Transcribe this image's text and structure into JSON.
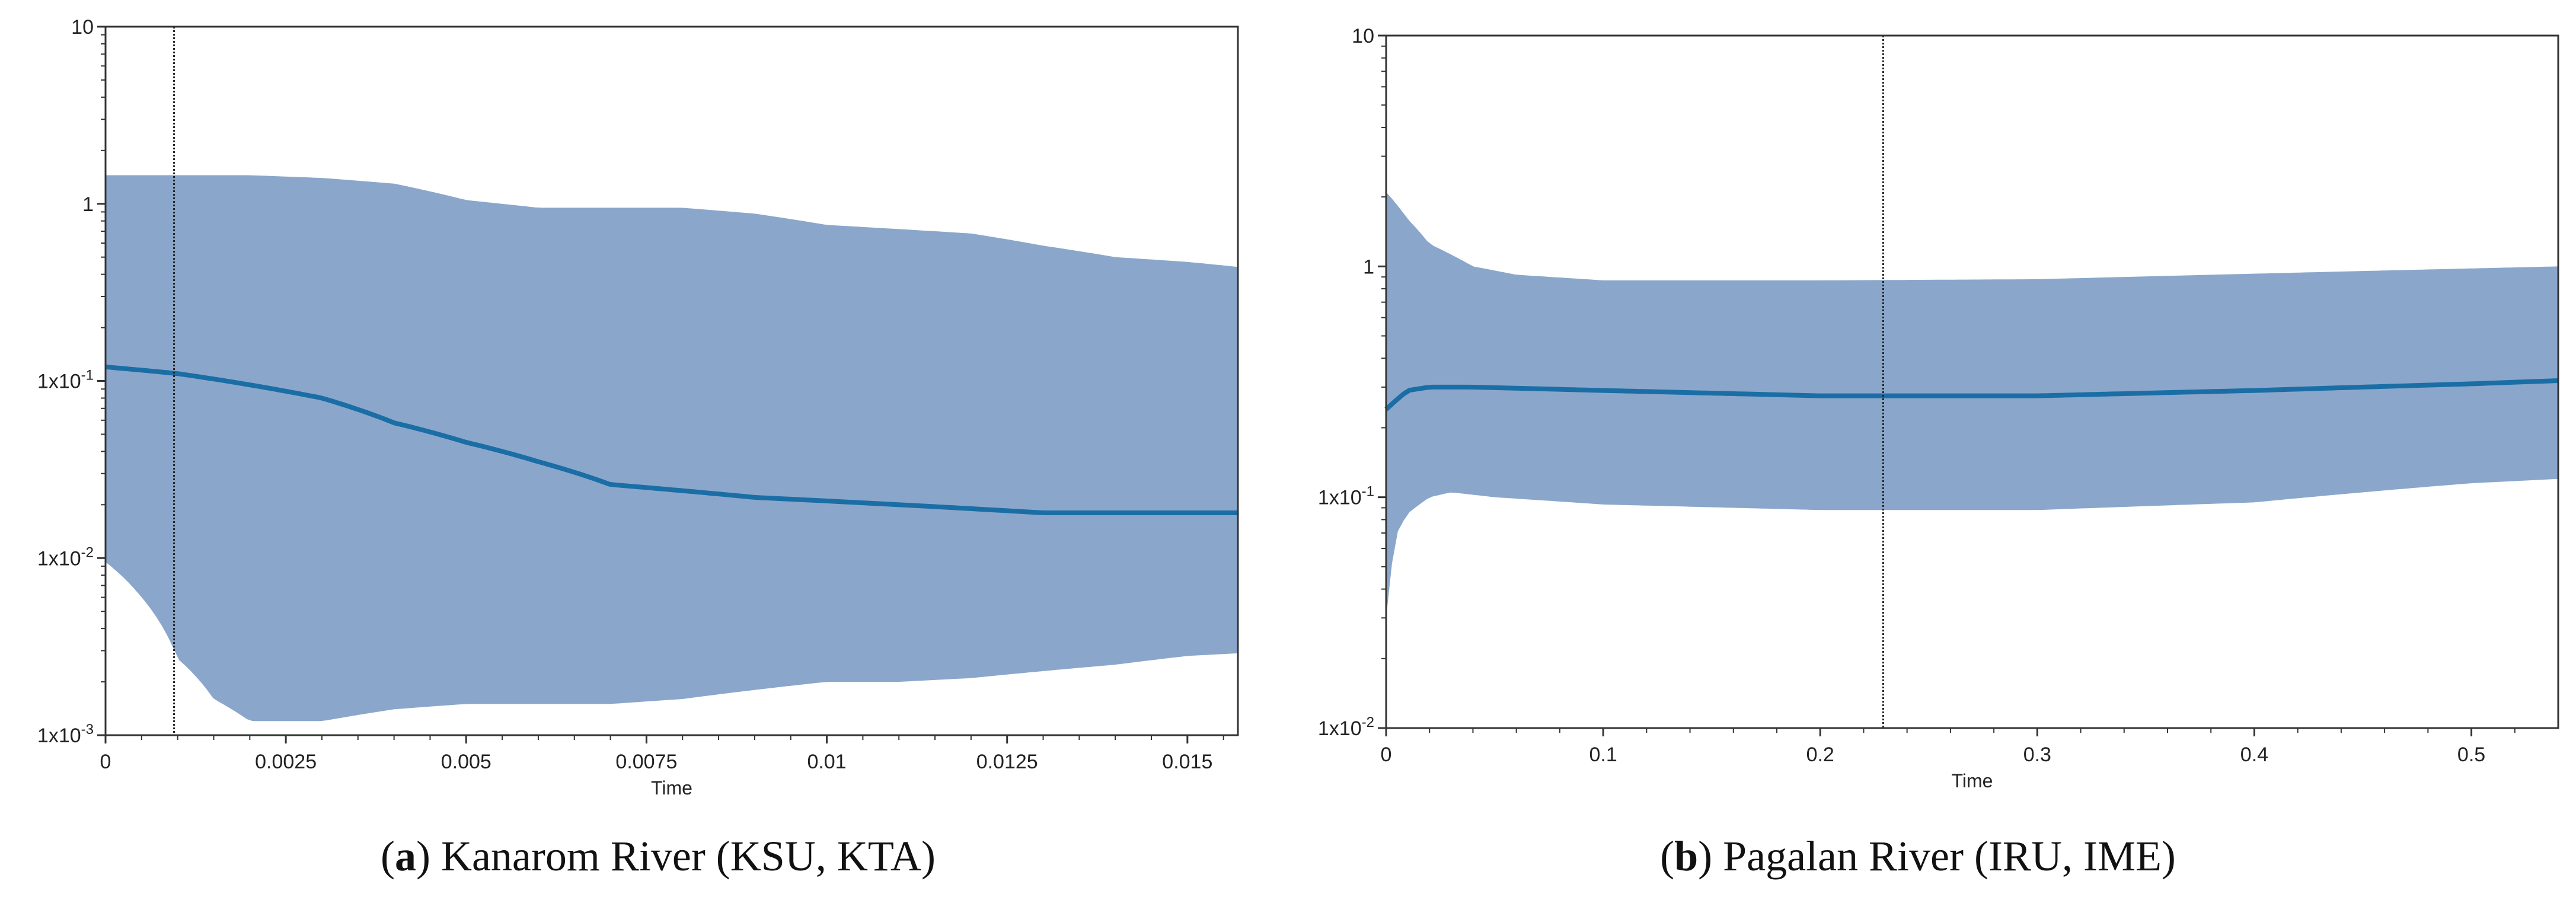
{
  "chart_data": [
    {
      "type": "area",
      "subplot_letter": "a",
      "caption": "Kanarom River (KSU, KTA)",
      "xlabel": "Time",
      "ylabel": "",
      "yscale": "log",
      "xlim": [
        0,
        0.0157
      ],
      "ylim": [
        0.001,
        10
      ],
      "x_ticks": [
        0,
        0.0025,
        0.005,
        0.0075,
        0.01,
        0.0125,
        0.015
      ],
      "x_tick_labels": [
        "0",
        "0.0025",
        "0.005",
        "0.0075",
        "0.01",
        "0.0125",
        "0.015"
      ],
      "y_ticks": [
        0.001,
        0.01,
        0.1,
        1,
        10
      ],
      "y_tick_labels": [
        {
          "base": "1x10",
          "exp": "-3"
        },
        {
          "base": "1x10",
          "exp": "-2"
        },
        {
          "base": "1x10",
          "exp": "-1"
        },
        {
          "base": "1",
          "exp": ""
        },
        {
          "base": "10",
          "exp": ""
        }
      ],
      "vline_x": 0.00095,
      "series": [
        {
          "name": "median",
          "x": [
            0,
            0.001,
            0.002,
            0.003,
            0.004,
            0.005,
            0.006,
            0.007,
            0.008,
            0.009,
            0.01,
            0.011,
            0.012,
            0.013,
            0.014,
            0.015,
            0.0157
          ],
          "values": [
            0.12,
            0.11,
            0.095,
            0.08,
            0.058,
            0.045,
            0.035,
            0.026,
            0.024,
            0.022,
            0.021,
            0.02,
            0.019,
            0.018,
            0.018,
            0.018,
            0.018
          ]
        },
        {
          "name": "upper_95_hpd",
          "x": [
            0,
            0.001,
            0.002,
            0.003,
            0.004,
            0.005,
            0.006,
            0.007,
            0.008,
            0.009,
            0.01,
            0.011,
            0.012,
            0.013,
            0.014,
            0.015,
            0.0157
          ],
          "values": [
            1.45,
            1.45,
            1.45,
            1.4,
            1.3,
            1.05,
            0.95,
            0.95,
            0.95,
            0.88,
            0.76,
            0.72,
            0.68,
            0.58,
            0.5,
            0.47,
            0.44
          ]
        },
        {
          "name": "lower_95_hpd",
          "x": [
            0,
            0.0005,
            0.001,
            0.0015,
            0.002,
            0.003,
            0.004,
            0.005,
            0.006,
            0.007,
            0.008,
            0.009,
            0.01,
            0.011,
            0.012,
            0.013,
            0.014,
            0.015,
            0.0157
          ],
          "values": [
            0.0095,
            0.006,
            0.0027,
            0.0016,
            0.0012,
            0.0012,
            0.0014,
            0.0015,
            0.0015,
            0.0015,
            0.0016,
            0.0018,
            0.002,
            0.002,
            0.0021,
            0.0023,
            0.0025,
            0.0028,
            0.0029
          ]
        }
      ]
    },
    {
      "type": "area",
      "subplot_letter": "b",
      "caption": "Pagalan River (IRU, IME)",
      "xlabel": "Time",
      "ylabel": "",
      "yscale": "log",
      "xlim": [
        0,
        0.54
      ],
      "ylim": [
        0.01,
        10
      ],
      "x_ticks": [
        0,
        0.1,
        0.2,
        0.3,
        0.4,
        0.5
      ],
      "x_tick_labels": [
        "0",
        "0.1",
        "0.2",
        "0.3",
        "0.4",
        "0.5"
      ],
      "y_ticks": [
        0.01,
        0.1,
        1,
        10
      ],
      "y_tick_labels": [
        {
          "base": "1x10",
          "exp": "-2"
        },
        {
          "base": "1x10",
          "exp": "-1"
        },
        {
          "base": "1",
          "exp": ""
        },
        {
          "base": "10",
          "exp": ""
        }
      ],
      "vline_x": 0.229,
      "series": [
        {
          "name": "median",
          "x": [
            0,
            0.01,
            0.02,
            0.04,
            0.1,
            0.2,
            0.3,
            0.4,
            0.5,
            0.54
          ],
          "values": [
            0.24,
            0.29,
            0.3,
            0.3,
            0.29,
            0.275,
            0.275,
            0.29,
            0.31,
            0.32
          ]
        },
        {
          "name": "upper_95_hpd",
          "x": [
            0,
            0.01,
            0.02,
            0.04,
            0.06,
            0.1,
            0.2,
            0.3,
            0.4,
            0.5,
            0.54
          ],
          "values": [
            2.1,
            1.6,
            1.25,
            1.0,
            0.92,
            0.87,
            0.87,
            0.88,
            0.93,
            0.98,
            1.0
          ]
        },
        {
          "name": "lower_95_hpd",
          "x": [
            0,
            0.005,
            0.01,
            0.02,
            0.03,
            0.05,
            0.1,
            0.2,
            0.3,
            0.4,
            0.5,
            0.54
          ],
          "values": [
            0.03,
            0.07,
            0.085,
            0.1,
            0.105,
            0.1,
            0.093,
            0.088,
            0.088,
            0.095,
            0.115,
            0.12
          ]
        }
      ]
    }
  ],
  "colors": {
    "band": "#8AA7CB",
    "median": "#1A6EA5",
    "axis": "#333333",
    "vline": "#222222"
  }
}
